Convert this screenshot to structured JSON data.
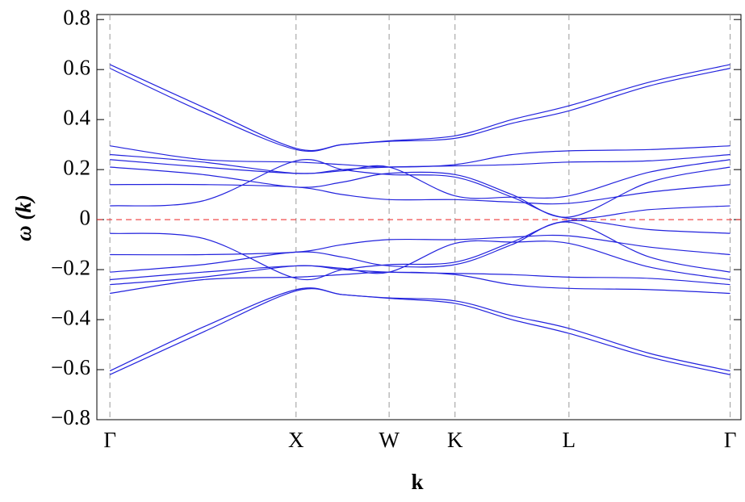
{
  "chart_data": {
    "type": "line",
    "xlabel": "k",
    "ylabel": "ω (k)",
    "x": [
      0,
      0.5,
      1,
      1.25,
      1.5,
      1.854,
      2.16,
      2.466,
      2.9,
      3.332
    ],
    "color": "#2222dd",
    "series": [
      {
        "values": [
          0.62,
          0.45,
          0.285,
          0.3,
          0.315,
          0.335,
          0.4,
          0.455,
          0.55,
          0.62
        ]
      },
      {
        "values": [
          0.605,
          0.43,
          0.28,
          0.3,
          0.313,
          0.325,
          0.385,
          0.435,
          0.535,
          0.605
        ]
      },
      {
        "values": [
          0.295,
          0.24,
          0.23,
          0.22,
          0.21,
          0.22,
          0.26,
          0.275,
          0.28,
          0.295
        ]
      },
      {
        "values": [
          0.26,
          0.23,
          0.185,
          0.2,
          0.21,
          0.215,
          0.22,
          0.23,
          0.235,
          0.26
        ]
      },
      {
        "values": [
          0.24,
          0.21,
          0.185,
          0.195,
          0.21,
          0.095,
          0.09,
          0.095,
          0.19,
          0.24
        ]
      },
      {
        "values": [
          0.21,
          0.18,
          0.13,
          0.15,
          0.185,
          0.18,
          0.1,
          0.01,
          0.15,
          0.21
        ]
      },
      {
        "values": [
          0.14,
          0.14,
          0.13,
          0.1,
          0.08,
          0.08,
          0.07,
          0.065,
          0.11,
          0.14
        ]
      },
      {
        "values": [
          0.055,
          0.075,
          0.235,
          0.2,
          0.18,
          0.17,
          0.09,
          0.005,
          0.04,
          0.055
        ]
      },
      {
        "values": [
          -0.055,
          -0.075,
          -0.235,
          -0.2,
          -0.18,
          -0.17,
          -0.09,
          -0.005,
          -0.04,
          -0.055
        ]
      },
      {
        "values": [
          -0.14,
          -0.14,
          -0.13,
          -0.1,
          -0.08,
          -0.08,
          -0.07,
          -0.065,
          -0.11,
          -0.14
        ]
      },
      {
        "values": [
          -0.21,
          -0.18,
          -0.13,
          -0.15,
          -0.185,
          -0.18,
          -0.1,
          -0.01,
          -0.15,
          -0.21
        ]
      },
      {
        "values": [
          -0.24,
          -0.21,
          -0.185,
          -0.195,
          -0.21,
          -0.095,
          -0.09,
          -0.095,
          -0.19,
          -0.24
        ]
      },
      {
        "values": [
          -0.26,
          -0.23,
          -0.185,
          -0.2,
          -0.21,
          -0.215,
          -0.22,
          -0.23,
          -0.235,
          -0.26
        ]
      },
      {
        "values": [
          -0.295,
          -0.24,
          -0.23,
          -0.22,
          -0.21,
          -0.22,
          -0.26,
          -0.275,
          -0.28,
          -0.295
        ]
      },
      {
        "values": [
          -0.605,
          -0.43,
          -0.28,
          -0.3,
          -0.313,
          -0.325,
          -0.385,
          -0.435,
          -0.535,
          -0.605
        ]
      },
      {
        "values": [
          -0.62,
          -0.45,
          -0.285,
          -0.3,
          -0.315,
          -0.335,
          -0.4,
          -0.455,
          -0.55,
          -0.62
        ]
      }
    ],
    "xlim": [
      -0.07,
      3.39
    ],
    "xticks": [
      {
        "value": 0,
        "label": "Γ"
      },
      {
        "value": 1,
        "label": "X"
      },
      {
        "value": 1.5,
        "label": "W"
      },
      {
        "value": 1.854,
        "label": "K"
      },
      {
        "value": 2.466,
        "label": "L"
      },
      {
        "value": 3.332,
        "label": "Γ"
      }
    ],
    "xgrid": {
      "color": "#999999",
      "dashed": true
    },
    "ylim": [
      -0.8,
      0.82
    ],
    "yticks": [
      {
        "value": -0.8,
        "label": "−0.8"
      },
      {
        "value": -0.6,
        "label": "−0.6"
      },
      {
        "value": -0.4,
        "label": "−0.4"
      },
      {
        "value": -0.2,
        "label": "−0.2"
      },
      0,
      0.2,
      0.4,
      0.6,
      0.8
    ],
    "hlines": [
      {
        "value": 0,
        "color": "#ee2222",
        "dashed": true
      }
    ]
  }
}
